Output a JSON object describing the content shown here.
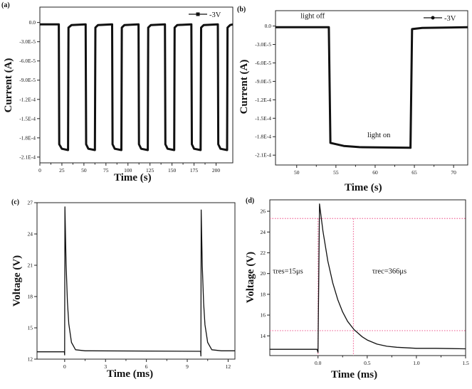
{
  "colors": {
    "line": "#111111",
    "guide": "#f06a9a"
  },
  "chart_data": [
    {
      "type": "line",
      "panel_label": "(a)",
      "xlabel": "Time (s)",
      "ylabel": "Current (A)",
      "xlim": [
        0,
        219
      ],
      "ylim": [
        -0.000219,
        2.4e-05
      ],
      "xticks": [
        0,
        25,
        50,
        75,
        100,
        125,
        150,
        175,
        200
      ],
      "xtick_labels": [
        "0",
        "25",
        "50",
        "75",
        "100",
        "125",
        "150",
        "175",
        "200"
      ],
      "yticks": [
        0,
        -3e-05,
        -6e-05,
        -9e-05,
        -0.00012,
        -0.00015,
        -0.00018,
        -0.00021
      ],
      "ytick_labels": [
        "0.0",
        "-3.0E-5",
        "-6.0E-5",
        "-9.0E-5",
        "-1.2E-4",
        "-1.5E-4",
        "-1.8E-4",
        "-2.1E-4"
      ],
      "legend": "top-right",
      "grid": false,
      "series": [
        {
          "name": "-3V",
          "marker": "square",
          "points": [
            [
              0,
              -3e-06
            ],
            [
              21.5,
              -3e-06
            ],
            [
              22,
              -0.00019
            ],
            [
              25,
              -0.000197
            ],
            [
              32,
              -0.000199
            ],
            [
              32.5,
              -8e-06
            ],
            [
              36,
              -4e-06
            ],
            [
              52,
              -3e-06
            ],
            [
              52.5,
              -0.00019
            ],
            [
              55,
              -0.000197
            ],
            [
              62.5,
              -0.000199
            ],
            [
              63,
              -8e-06
            ],
            [
              66,
              -4e-06
            ],
            [
              82,
              -3e-06
            ],
            [
              82.5,
              -0.00019
            ],
            [
              85,
              -0.000197
            ],
            [
              92.5,
              -0.000199
            ],
            [
              93,
              -8e-06
            ],
            [
              96,
              -4e-06
            ],
            [
              112,
              -3e-06
            ],
            [
              112.5,
              -0.00019
            ],
            [
              115,
              -0.000197
            ],
            [
              122.5,
              -0.000199
            ],
            [
              123,
              -8e-06
            ],
            [
              126,
              -4e-06
            ],
            [
              142,
              -3e-06
            ],
            [
              142.5,
              -0.00019
            ],
            [
              145,
              -0.000197
            ],
            [
              152.5,
              -0.000199
            ],
            [
              153,
              -8e-06
            ],
            [
              156,
              -4e-06
            ],
            [
              172,
              -3e-06
            ],
            [
              172.5,
              -0.00019
            ],
            [
              175,
              -0.000197
            ],
            [
              182.5,
              -0.000199
            ],
            [
              183,
              -8e-06
            ],
            [
              186,
              -4e-06
            ],
            [
              202,
              -3e-06
            ],
            [
              202.5,
              -0.00019
            ],
            [
              205,
              -0.000197
            ],
            [
              212.5,
              -0.000199
            ],
            [
              213,
              -8e-06
            ],
            [
              216,
              -4e-06
            ],
            [
              219,
              -3e-06
            ]
          ]
        }
      ],
      "annotations": []
    },
    {
      "type": "line",
      "panel_label": "(b)",
      "xlabel": "Time (s)",
      "ylabel": "Current (A)",
      "xlim": [
        47.3,
        71.8
      ],
      "ylim": [
        -0.000226,
        2.5e-05
      ],
      "xticks": [
        50,
        55,
        60,
        65,
        70
      ],
      "xtick_labels": [
        "50",
        "55",
        "60",
        "65",
        "70"
      ],
      "yticks": [
        0,
        -3e-05,
        -6e-05,
        -9e-05,
        -0.00012,
        -0.00015,
        -0.00018,
        -0.00021
      ],
      "ytick_labels": [
        "0.0",
        "-3.0E-5",
        "-6.0E-5",
        "-9.0E-5",
        "-1.2E-4",
        "-1.5E-4",
        "-1.8E-4",
        "-2.1E-4"
      ],
      "legend": "top-right",
      "grid": false,
      "series": [
        {
          "name": "-3V",
          "marker": "circle",
          "points": [
            [
              47.3,
              -2e-06
            ],
            [
              54.1,
              -2e-06
            ],
            [
              54.3,
              -0.00019
            ],
            [
              56,
              -0.000195
            ],
            [
              58,
              -0.000197
            ],
            [
              64.5,
              -0.000198
            ],
            [
              64.7,
              -5e-06
            ],
            [
              66,
              -3e-06
            ],
            [
              71.8,
              -2e-06
            ]
          ]
        }
      ],
      "annotations": [
        {
          "text": "light off",
          "x": 50.5,
          "y": 1.3e-05
        },
        {
          "text": "light on",
          "x": 59,
          "y": -0.000181
        }
      ]
    },
    {
      "type": "line",
      "panel_label": "(c)",
      "xlabel": "Time (ms)",
      "ylabel": "Voltage (V)",
      "xlim": [
        -2.03,
        12.5
      ],
      "ylim": [
        12,
        27
      ],
      "xticks": [
        0,
        3,
        6,
        9,
        12
      ],
      "xtick_labels": [
        "0",
        "3",
        "6",
        "9",
        "12"
      ],
      "yticks": [
        12,
        15,
        18,
        21,
        24,
        27
      ],
      "ytick_labels": [
        "12",
        "15",
        "18",
        "21",
        "24",
        "27"
      ],
      "grid": false,
      "series": [
        {
          "points": [
            [
              -2.03,
              12.7
            ],
            [
              -0.02,
              12.7
            ],
            [
              0,
              12.4
            ],
            [
              0.02,
              26.6
            ],
            [
              0.1,
              21.2
            ],
            [
              0.2,
              17.5
            ],
            [
              0.3,
              15.4
            ],
            [
              0.5,
              13.6
            ],
            [
              0.8,
              12.9
            ],
            [
              1.5,
              12.8
            ],
            [
              9.98,
              12.75
            ],
            [
              10,
              12.3
            ],
            [
              10.02,
              26.3
            ],
            [
              10.1,
              21
            ],
            [
              10.2,
              17.4
            ],
            [
              10.3,
              15.3
            ],
            [
              10.5,
              13.6
            ],
            [
              10.8,
              12.9
            ],
            [
              11.5,
              12.8
            ],
            [
              12.5,
              12.8
            ]
          ]
        }
      ],
      "annotations": []
    },
    {
      "type": "line",
      "panel_label": "(d)",
      "xlabel": "Time (ms)",
      "ylabel": "Voltage (V)",
      "xlim": [
        -0.49,
        1.5
      ],
      "ylim": [
        12.1,
        27.1
      ],
      "xticks": [
        0,
        0.5,
        1,
        1.5
      ],
      "xtick_labels": [
        "0.0",
        "0.5",
        "1.0",
        "1.5"
      ],
      "yticks": [
        14,
        16,
        18,
        20,
        22,
        24,
        26
      ],
      "ytick_labels": [
        "14",
        "16",
        "18",
        "20",
        "22",
        "24",
        "26"
      ],
      "grid": false,
      "series": [
        {
          "points": [
            [
              -0.49,
              12.7
            ],
            [
              -0.01,
              12.7
            ],
            [
              0,
              12.4
            ],
            [
              0.015,
              26.7
            ],
            [
              0.05,
              24.1
            ],
            [
              0.1,
              21.2
            ],
            [
              0.15,
              19.1
            ],
            [
              0.2,
              17.5
            ],
            [
              0.25,
              16.3
            ],
            [
              0.3,
              15.4
            ],
            [
              0.366,
              14.6
            ],
            [
              0.45,
              13.9
            ],
            [
              0.5,
              13.6
            ],
            [
              0.6,
              13.2
            ],
            [
              0.7,
              13.0
            ],
            [
              0.8,
              12.9
            ],
            [
              1.0,
              12.8
            ],
            [
              1.2,
              12.8
            ],
            [
              1.5,
              12.75
            ]
          ]
        }
      ],
      "guides": {
        "h": [
          25.3,
          14.5
        ],
        "v": [
          0.0,
          0.36
        ]
      },
      "annotations": [
        {
          "text": "τres=15μs",
          "x": -0.46,
          "y": 20
        },
        {
          "text": "τrec=366μs",
          "x": 0.55,
          "y": 20
        }
      ]
    }
  ]
}
